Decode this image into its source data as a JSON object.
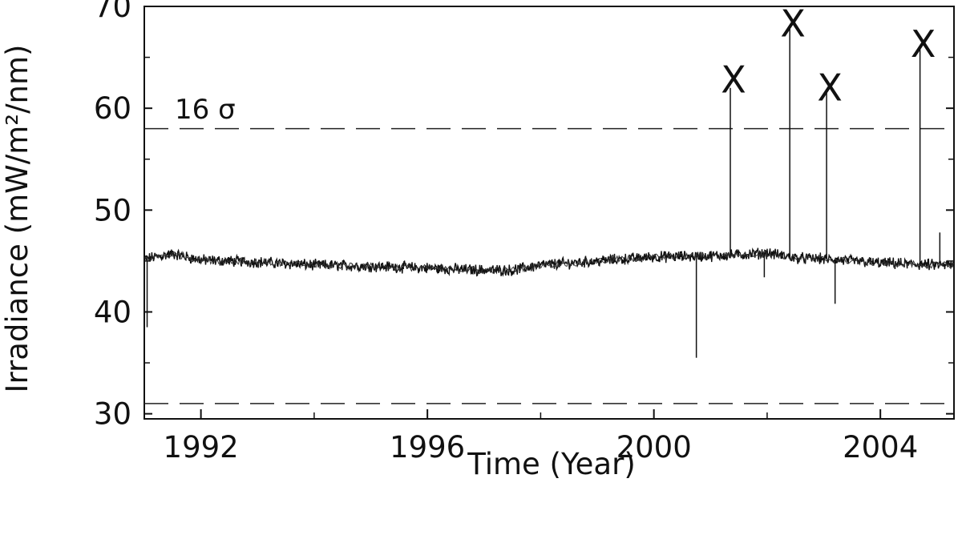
{
  "chart_data": {
    "type": "line",
    "title": "",
    "xlabel": "Time (Year)",
    "ylabel": "Irradiance (mW/m²/nm)",
    "xlim": [
      1991.0,
      2005.3
    ],
    "ylim": [
      29.5,
      70
    ],
    "x_ticks": [
      1992,
      1996,
      2000,
      2004
    ],
    "x_tick_labels": [
      "1992",
      "1996",
      "2000",
      "2004"
    ],
    "y_ticks": [
      30,
      40,
      50,
      60,
      70
    ],
    "y_tick_labels": [
      "30",
      "40",
      "50",
      "60",
      "70"
    ],
    "grid": false,
    "threshold_lines": [
      {
        "y": 58.0,
        "style": "dashed"
      },
      {
        "y": 31.0,
        "style": "dashed"
      }
    ],
    "threshold_label": "16 σ",
    "baseline_series": {
      "x": [
        1991.0,
        1991.5,
        1992.0,
        1993.0,
        1994.0,
        1995.0,
        1996.0,
        1997.0,
        1997.5,
        1998.0,
        1999.0,
        2000.0,
        2001.0,
        2001.5,
        2002.0,
        2002.5,
        2003.0,
        2003.5,
        2004.0,
        2004.5,
        2005.0,
        2005.3
      ],
      "y": [
        45.2,
        45.7,
        45.1,
        44.9,
        44.6,
        44.5,
        44.3,
        44.1,
        44.1,
        44.6,
        45.0,
        45.4,
        45.5,
        45.6,
        45.8,
        45.3,
        45.2,
        45.0,
        44.8,
        44.7,
        44.6,
        44.6
      ]
    },
    "spikes": [
      {
        "x": 1991.05,
        "y": 38.5
      },
      {
        "x": 2000.75,
        "y": 35.5
      },
      {
        "x": 2001.35,
        "y": 62.0
      },
      {
        "x": 2001.95,
        "y": 43.4
      },
      {
        "x": 2002.4,
        "y": 68.0
      },
      {
        "x": 2003.05,
        "y": 61.7
      },
      {
        "x": 2003.2,
        "y": 40.8
      },
      {
        "x": 2004.7,
        "y": 66.0
      },
      {
        "x": 2005.05,
        "y": 47.8
      }
    ],
    "flare_marks": [
      {
        "x": 2001.35,
        "y": 62.8,
        "label": "X"
      },
      {
        "x": 2002.4,
        "y": 68.3,
        "label": "X"
      },
      {
        "x": 2003.05,
        "y": 62.0,
        "label": "X"
      },
      {
        "x": 2004.7,
        "y": 66.3,
        "label": "X"
      }
    ]
  }
}
